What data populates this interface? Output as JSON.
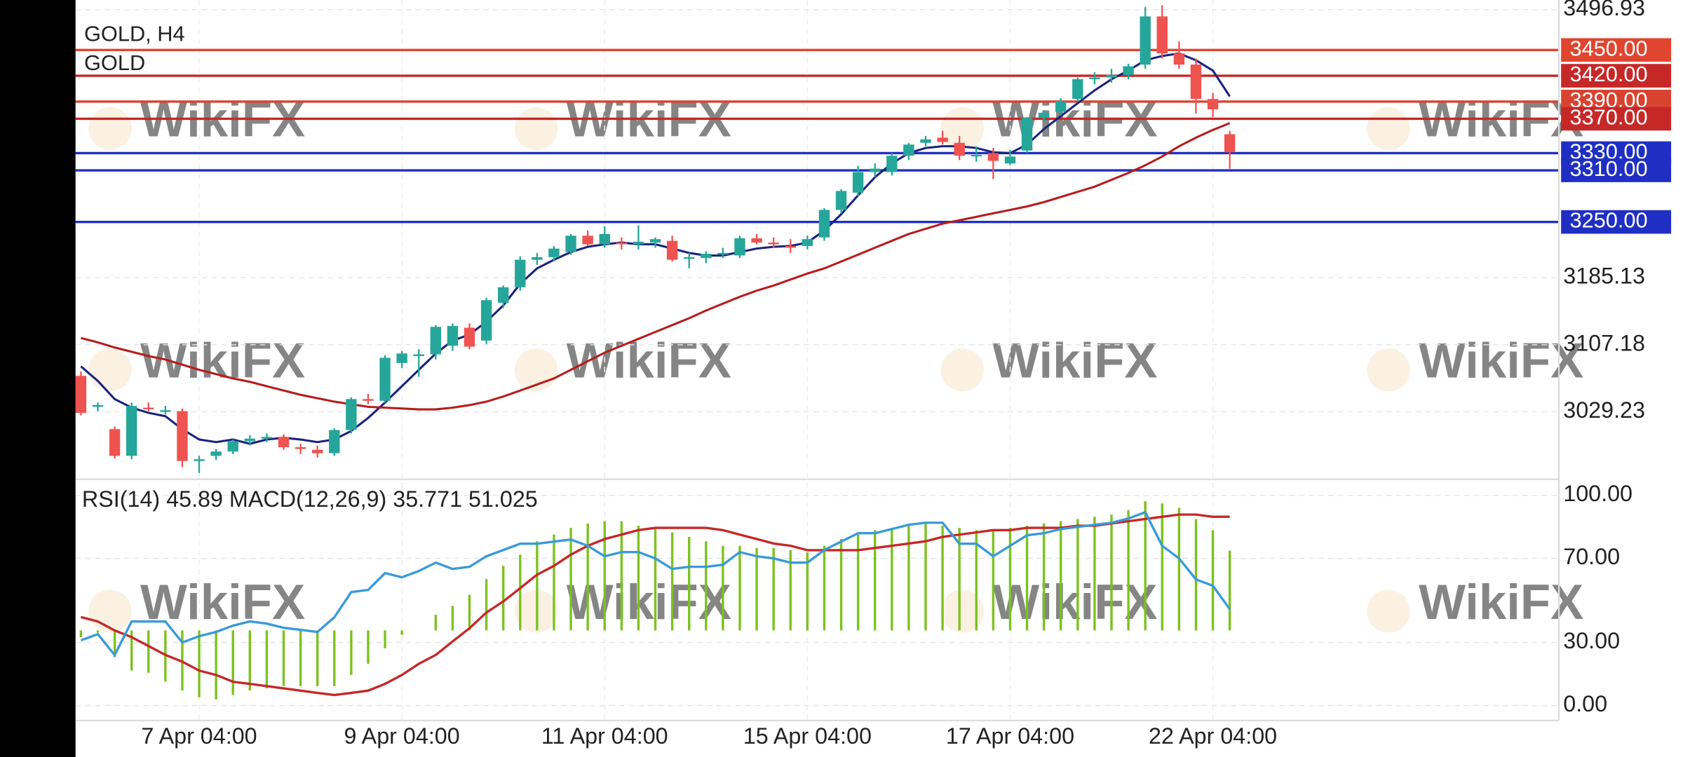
{
  "chart_data": [
    {
      "type": "candlestick",
      "title": "GOLD, H4",
      "subtitle": "GOLD",
      "watermark": "WikiFX",
      "categories": [
        null,
        null,
        null,
        null,
        null,
        null,
        null,
        "7 Apr 04:00",
        null,
        null,
        null,
        null,
        null,
        null,
        null,
        null,
        null,
        null,
        null,
        "9 Apr 04:00",
        null,
        null,
        null,
        null,
        null,
        null,
        null,
        null,
        null,
        null,
        null,
        "11 Apr 04:00",
        null,
        null,
        null,
        null,
        null,
        null,
        null,
        null,
        null,
        null,
        null,
        "15 Apr 04:00",
        null,
        null,
        null,
        null,
        null,
        null,
        null,
        null,
        null,
        null,
        null,
        "17 Apr 04:00",
        null,
        null,
        null,
        null,
        null,
        null,
        null,
        null,
        null,
        null,
        null,
        "22 Apr 04:00",
        null
      ],
      "open": [
        3071,
        3035,
        3009,
        2978,
        3034,
        3030,
        3030,
        2972,
        2978,
        2983,
        2995,
        2998,
        3000,
        2988,
        2985,
        2981,
        3008,
        3044,
        3042,
        3086,
        3094,
        3096,
        3106,
        3127,
        3112,
        3156,
        3174,
        3206,
        3209,
        3215,
        3234,
        3224,
        3226,
        3224,
        3226,
        3228,
        3208,
        3208,
        3213,
        3211,
        3231,
        3226,
        3222,
        3222,
        3232,
        3264,
        3284,
        3308,
        3308,
        3327,
        3342,
        3348,
        3342,
        3327,
        3330,
        3318,
        3333,
        3371,
        3378,
        3393,
        3416,
        3418,
        3421,
        3433,
        3489,
        3446,
        3433,
        3393,
        3352
      ],
      "high": [
        3076,
        3040,
        3012,
        3040,
        3040,
        3036,
        3033,
        2978,
        2986,
        2997,
        3002,
        3004,
        3003,
        2992,
        2990,
        3010,
        3046,
        3050,
        3095,
        3100,
        3102,
        3130,
        3132,
        3132,
        3162,
        3176,
        3210,
        3214,
        3222,
        3236,
        3240,
        3245,
        3232,
        3246,
        3232,
        3234,
        3214,
        3216,
        3220,
        3234,
        3236,
        3232,
        3230,
        3234,
        3266,
        3288,
        3315,
        3318,
        3330,
        3342,
        3350,
        3356,
        3350,
        3338,
        3336,
        3334,
        3372,
        3380,
        3394,
        3418,
        3424,
        3428,
        3434,
        3500,
        3502,
        3460,
        3440,
        3400,
        3356
      ],
      "low": [
        3025,
        3030,
        2975,
        2974,
        3030,
        3026,
        2965,
        2958,
        2973,
        2980,
        2990,
        2994,
        2985,
        2980,
        2976,
        2978,
        3004,
        3038,
        3040,
        3080,
        3070,
        3090,
        3100,
        3102,
        3108,
        3150,
        3170,
        3200,
        3204,
        3212,
        3222,
        3220,
        3218,
        3218,
        3220,
        3204,
        3196,
        3202,
        3208,
        3208,
        3224,
        3220,
        3214,
        3218,
        3228,
        3260,
        3280,
        3302,
        3304,
        3322,
        3338,
        3340,
        3322,
        3320,
        3300,
        3316,
        3330,
        3366,
        3374,
        3390,
        3410,
        3412,
        3416,
        3428,
        3440,
        3428,
        3376,
        3372,
        3312
      ],
      "close": [
        3028,
        3037,
        2978,
        3036,
        3033,
        3031,
        2972,
        2974,
        2983,
        2995,
        2998,
        3000,
        2988,
        2986,
        2981,
        3008,
        3044,
        3042,
        3092,
        3097,
        3096,
        3128,
        3129,
        3105,
        3159,
        3174,
        3206,
        3209,
        3219,
        3234,
        3224,
        3236,
        3224,
        3227,
        3230,
        3206,
        3209,
        3213,
        3214,
        3231,
        3226,
        3224,
        3220,
        3230,
        3264,
        3286,
        3308,
        3312,
        3327,
        3340,
        3346,
        3343,
        3327,
        3328,
        3321,
        3326,
        3371,
        3377,
        3390,
        3416,
        3418,
        3421,
        3431,
        3489,
        3446,
        3433,
        3393,
        3381,
        3331
      ],
      "up_color": "#26a69a",
      "down_color": "#ef5350",
      "series": [
        {
          "color": "#1a237e",
          "values": [
            3082,
            3065,
            3044,
            3034,
            3028,
            3024,
            3009,
            2997,
            2994,
            2997,
            2992,
            2997,
            2999,
            2997,
            2994,
            2997,
            3007,
            3022,
            3040,
            3059,
            3078,
            3097,
            3112,
            3119,
            3134,
            3153,
            3178,
            3196,
            3206,
            3215,
            3221,
            3224,
            3226,
            3224,
            3224,
            3219,
            3214,
            3211,
            3211,
            3215,
            3219,
            3221,
            3222,
            3226,
            3240,
            3259,
            3281,
            3302,
            3318,
            3330,
            3336,
            3338,
            3338,
            3336,
            3331,
            3330,
            3340,
            3358,
            3373,
            3388,
            3403,
            3416,
            3426,
            3438,
            3443,
            3446,
            3438,
            3426,
            3396
          ]
        },
        {
          "color": "#b71c1c",
          "values": [
            3115,
            3110,
            3104,
            3099,
            3094,
            3090,
            3084,
            3078,
            3073,
            3068,
            3064,
            3059,
            3054,
            3049,
            3045,
            3041,
            3038,
            3035,
            3034,
            3033,
            3032,
            3032,
            3034,
            3037,
            3041,
            3047,
            3054,
            3061,
            3068,
            3078,
            3088,
            3098,
            3106,
            3114,
            3122,
            3130,
            3138,
            3147,
            3155,
            3163,
            3170,
            3176,
            3183,
            3190,
            3196,
            3204,
            3212,
            3220,
            3228,
            3236,
            3242,
            3248,
            3252,
            3256,
            3260,
            3264,
            3268,
            3273,
            3279,
            3285,
            3291,
            3299,
            3307,
            3316,
            3326,
            3338,
            3348,
            3357,
            3365
          ]
        }
      ],
      "levels": [
        {
          "value": 3450,
          "label": "3450.00",
          "color": "#e0452f"
        },
        {
          "value": 3420,
          "label": "3420.00",
          "color": "#c62828"
        },
        {
          "value": 3390,
          "label": "3390.00",
          "color": "#d84330"
        },
        {
          "value": 3370,
          "label": "3370.00",
          "color": "#c62828"
        },
        {
          "value": 3330,
          "label": "3330.00",
          "color": "#1f2fc4"
        },
        {
          "value": 3310,
          "label": "3310.00",
          "color": "#1f2fc4"
        },
        {
          "value": 3250,
          "label": "3250.00",
          "color": "#1f2fc4"
        }
      ],
      "ylim": [
        2953.2,
        3508.1
      ],
      "yticks": [
        3029.23,
        3107.18,
        3185.13,
        3496.93
      ],
      "grid": true
    },
    {
      "type": "indicator",
      "title": "RSI(14) 45.89 MACD(12,26,9) 35.771 51.025",
      "series": [
        {
          "kind": "bar",
          "axis": "y2",
          "color": "#7cc21e",
          "values": [
            -3,
            -1,
            -12,
            -18,
            -19,
            -23,
            -27,
            -30,
            -31,
            -29,
            -27,
            -26,
            -25,
            -25,
            -25,
            -25,
            -20,
            -15,
            -8,
            -2,
            0,
            7,
            11,
            16,
            23,
            29,
            34,
            40,
            43,
            46,
            48,
            49,
            49,
            47,
            46,
            44,
            42,
            40,
            38,
            38,
            37,
            37,
            36,
            35,
            38,
            41,
            43,
            45,
            46,
            47,
            48,
            47,
            46,
            45,
            45,
            46,
            47,
            48,
            49,
            50,
            51,
            52,
            54,
            58,
            57,
            55,
            50,
            45,
            35.771
          ]
        },
        {
          "kind": "line",
          "axis": "y2",
          "color": "#c62828",
          "values": [
            6,
            4,
            0,
            -3,
            -7,
            -11,
            -14,
            -18,
            -20,
            -23,
            -24,
            -25,
            -26,
            -27,
            -28,
            -29,
            -28,
            -27,
            -24,
            -20,
            -15,
            -11,
            -5,
            1,
            8,
            13,
            19,
            25,
            29,
            34,
            38,
            41,
            43,
            45,
            46,
            46,
            46,
            46,
            45,
            43,
            41,
            39,
            38,
            36,
            36,
            36,
            36,
            37,
            38,
            39,
            40,
            42,
            43,
            44,
            45,
            45,
            46,
            46,
            46,
            47,
            47,
            48,
            49,
            50,
            51,
            52,
            52,
            51,
            51.025
          ]
        },
        {
          "kind": "line",
          "color": "#3a9ad9",
          "values": [
            31,
            34,
            24,
            40,
            40,
            40,
            30,
            33,
            35,
            38,
            40,
            39,
            37,
            36,
            35,
            42,
            54,
            55,
            63,
            61,
            64,
            68,
            65,
            66,
            71,
            74,
            77,
            77,
            78,
            79,
            76,
            71,
            73,
            73,
            70,
            65,
            66,
            66,
            67,
            73,
            71,
            70,
            68,
            68,
            74,
            78,
            82,
            82,
            84,
            86,
            87,
            87,
            77,
            77,
            71,
            76,
            81,
            82,
            84,
            85,
            86,
            87,
            89,
            92,
            76,
            70,
            60,
            57,
            45.89
          ]
        }
      ],
      "ylim": [
        0,
        100
      ],
      "yticks": [
        {
          "value": 0,
          "label": "0.00"
        },
        {
          "value": 30,
          "label": "30.00"
        },
        {
          "value": 70,
          "label": "70.00"
        },
        {
          "value": 100,
          "label": "100.00"
        }
      ],
      "y2lim": [
        -33.7,
        60.6
      ],
      "grid": true
    }
  ]
}
